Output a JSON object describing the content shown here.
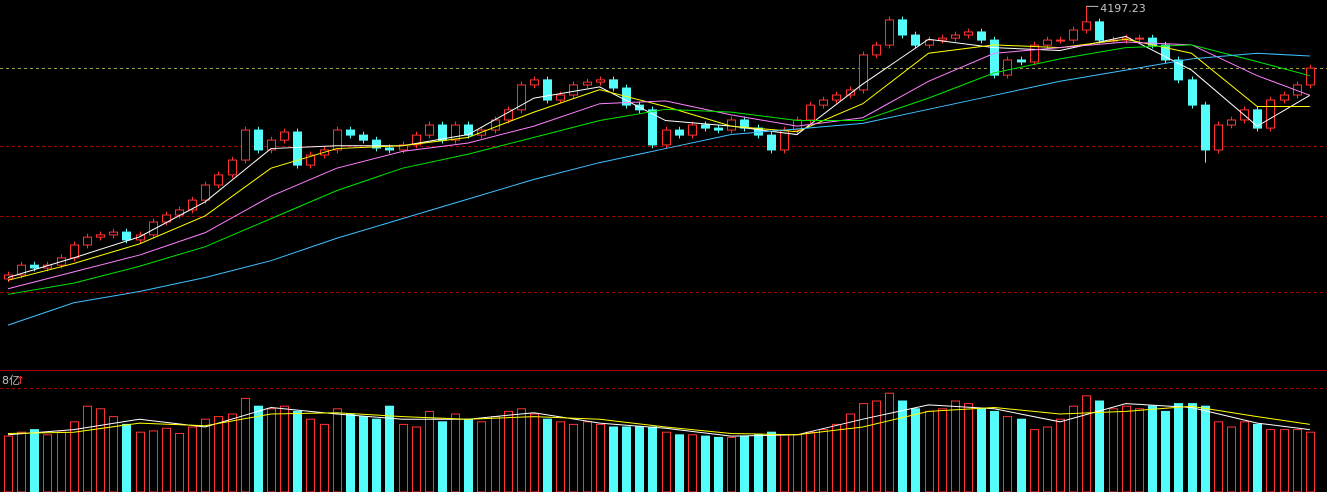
{
  "chart_data": {
    "type": "candlestick",
    "annotation": "4197.23",
    "volume_label": "8亿",
    "volume_arrow": "↑",
    "open": [
      3225,
      3239,
      3274,
      3264,
      3274,
      3300,
      3346,
      3374,
      3382,
      3392,
      3364,
      3382,
      3428,
      3453,
      3471,
      3506,
      3560,
      3596,
      3649,
      3756,
      3685,
      3720,
      3749,
      3631,
      3667,
      3685,
      3756,
      3738,
      3720,
      3692,
      3685,
      3703,
      3738,
      3774,
      3720,
      3774,
      3738,
      3756,
      3792,
      3828,
      3917,
      3935,
      3863,
      3881,
      3917,
      3927,
      3935,
      3906,
      3845,
      3828,
      3703,
      3756,
      3738,
      3774,
      3763,
      3756,
      3792,
      3763,
      3738,
      3685,
      3756,
      3792,
      3845,
      3863,
      3881,
      3899,
      4024,
      4059,
      4149,
      4095,
      4059,
      4077,
      4084,
      4095,
      4106,
      4077,
      3952,
      4006,
      3999,
      4059,
      4077,
      4077,
      4113,
      4142,
      4077,
      4077,
      4084,
      4084,
      4059,
      4006,
      3935,
      3845,
      3685,
      3774,
      3792,
      3828,
      3763,
      3863,
      3881,
      3917
    ],
    "high": [
      3251,
      3286,
      3286,
      3286,
      3312,
      3358,
      3386,
      3394,
      3404,
      3404,
      3394,
      3440,
      3465,
      3483,
      3518,
      3572,
      3608,
      3661,
      3768,
      3768,
      3732,
      3761,
      3761,
      3679,
      3697,
      3768,
      3768,
      3750,
      3732,
      3704,
      3715,
      3750,
      3786,
      3786,
      3786,
      3786,
      3768,
      3804,
      3840,
      3929,
      3947,
      3947,
      3893,
      3929,
      3939,
      3947,
      3947,
      3918,
      3857,
      3840,
      3768,
      3768,
      3786,
      3786,
      3775,
      3804,
      3804,
      3775,
      3750,
      3768,
      3804,
      3857,
      3875,
      3893,
      3911,
      4036,
      4071,
      4161,
      4161,
      4107,
      4089,
      4096,
      4107,
      4118,
      4118,
      4089,
      4018,
      4018,
      4071,
      4089,
      4089,
      4125,
      4197.23,
      4154,
      4089,
      4096,
      4096,
      4096,
      4071,
      4018,
      3947,
      3857,
      3786,
      3804,
      3840,
      3840,
      3875,
      3893,
      3929,
      3989
    ],
    "low": [
      3213,
      3227,
      3252,
      3252,
      3262,
      3288,
      3334,
      3362,
      3370,
      3352,
      3352,
      3370,
      3416,
      3441,
      3459,
      3494,
      3548,
      3584,
      3637,
      3673,
      3673,
      3708,
      3619,
      3619,
      3655,
      3673,
      3726,
      3708,
      3680,
      3673,
      3673,
      3691,
      3726,
      3708,
      3708,
      3726,
      3726,
      3744,
      3780,
      3816,
      3905,
      3851,
      3851,
      3869,
      3905,
      3915,
      3894,
      3833,
      3816,
      3691,
      3691,
      3726,
      3726,
      3751,
      3744,
      3744,
      3751,
      3726,
      3673,
      3673,
      3744,
      3780,
      3833,
      3851,
      3869,
      3887,
      4012,
      4047,
      4083,
      4047,
      4047,
      4065,
      4072,
      4083,
      4065,
      3940,
      3940,
      3987,
      3987,
      4047,
      4065,
      4065,
      4101,
      4065,
      4065,
      4065,
      4072,
      4047,
      3994,
      3923,
      3833,
      3640,
      3673,
      3762,
      3780,
      3751,
      3751,
      3851,
      3869,
      3905
    ],
    "close": [
      3239,
      3274,
      3264,
      3274,
      3300,
      3346,
      3374,
      3382,
      3392,
      3364,
      3382,
      3428,
      3453,
      3471,
      3506,
      3560,
      3596,
      3649,
      3756,
      3685,
      3720,
      3749,
      3631,
      3667,
      3685,
      3756,
      3738,
      3720,
      3692,
      3685,
      3703,
      3738,
      3774,
      3720,
      3774,
      3738,
      3756,
      3792,
      3828,
      3917,
      3935,
      3863,
      3881,
      3917,
      3927,
      3935,
      3906,
      3845,
      3828,
      3703,
      3756,
      3738,
      3774,
      3763,
      3756,
      3792,
      3763,
      3738,
      3685,
      3756,
      3792,
      3845,
      3863,
      3881,
      3899,
      4024,
      4059,
      4149,
      4095,
      4059,
      4077,
      4084,
      4095,
      4106,
      4077,
      3952,
      4006,
      3999,
      4059,
      4077,
      4077,
      4113,
      4142,
      4077,
      4077,
      4084,
      4084,
      4059,
      4006,
      3935,
      3845,
      3685,
      3774,
      3792,
      3828,
      3763,
      3863,
      3881,
      3917,
      3977
    ],
    "volume": [
      4.3,
      4.6,
      4.8,
      4.4,
      4.6,
      5.4,
      6.6,
      6.4,
      5.8,
      5.2,
      4.6,
      4.7,
      4.9,
      4.5,
      5.0,
      5.6,
      5.8,
      6.0,
      7.2,
      6.6,
      6.4,
      6.6,
      6.2,
      5.6,
      5.2,
      6.4,
      6.0,
      5.8,
      5.6,
      6.6,
      5.2,
      5.0,
      6.2,
      5.4,
      6.0,
      5.6,
      5.4,
      5.8,
      6.2,
      6.4,
      6.0,
      5.6,
      5.4,
      5.2,
      5.4,
      5.2,
      5.0,
      5.0,
      5.0,
      5.0,
      4.6,
      4.4,
      4.4,
      4.3,
      4.2,
      4.2,
      4.3,
      4.4,
      4.6,
      4.4,
      4.4,
      4.6,
      4.8,
      5.2,
      6.0,
      6.8,
      7.0,
      7.6,
      7.0,
      6.4,
      6.2,
      6.4,
      7.0,
      6.8,
      6.4,
      6.2,
      5.8,
      5.6,
      4.8,
      5.0,
      5.6,
      6.6,
      7.4,
      7.0,
      6.4,
      6.6,
      6.4,
      6.6,
      6.2,
      6.8,
      6.8,
      6.6,
      5.4,
      5.0,
      5.4,
      5.2,
      4.8,
      4.8,
      4.8,
      4.6
    ],
    "up_color": "#ff3232",
    "down_color": "#54fcfc",
    "ylim": [
      2900,
      4220
    ],
    "yticks": [
      3180,
      3450,
      3700
    ],
    "vlim": [
      0,
      9
    ],
    "vticks": [
      8
    ],
    "ma_x": [
      0,
      5,
      10,
      15,
      20,
      25,
      30,
      35,
      40,
      45,
      50,
      55,
      60,
      65,
      70,
      75,
      80,
      85,
      90,
      95,
      99
    ],
    "ma": [
      {
        "color": "#ffffff",
        "values": [
          3230,
          3300,
          3375,
          3500,
          3690,
          3700,
          3700,
          3740,
          3870,
          3910,
          3790,
          3770,
          3740,
          3920,
          4080,
          4050,
          4040,
          4090,
          3970,
          3770,
          3880
        ]
      },
      {
        "color": "#ffff00",
        "values": [
          3220,
          3280,
          3350,
          3450,
          3620,
          3690,
          3700,
          3730,
          3820,
          3900,
          3840,
          3770,
          3750,
          3850,
          4030,
          4060,
          4050,
          4080,
          4030,
          3840,
          3840
        ]
      },
      {
        "color": "#ff80ff",
        "values": [
          3190,
          3250,
          3310,
          3390,
          3520,
          3620,
          3680,
          3710,
          3770,
          3850,
          3860,
          3810,
          3770,
          3800,
          3930,
          4030,
          4050,
          4070,
          4060,
          3950,
          3880
        ]
      },
      {
        "color": "#00e600",
        "values": [
          3170,
          3210,
          3270,
          3340,
          3440,
          3540,
          3620,
          3670,
          3730,
          3790,
          3830,
          3820,
          3790,
          3790,
          3870,
          3960,
          4010,
          4050,
          4060,
          4000,
          3950
        ]
      },
      {
        "color": "#40c0ff",
        "values": [
          3060,
          3140,
          3180,
          3230,
          3290,
          3370,
          3440,
          3510,
          3580,
          3640,
          3690,
          3740,
          3760,
          3780,
          3830,
          3880,
          3930,
          3970,
          4010,
          4030,
          4020
        ]
      }
    ],
    "vma": [
      {
        "color": "#ffffff",
        "values": [
          4.4,
          4.8,
          5.6,
          5.0,
          6.5,
          6.0,
          5.6,
          5.6,
          6.1,
          5.3,
          4.9,
          4.3,
          4.4,
          5.6,
          6.7,
          6.4,
          5.4,
          6.8,
          6.5,
          5.3,
          4.8
        ]
      },
      {
        "color": "#ffff00",
        "values": [
          4.5,
          4.6,
          5.3,
          5.1,
          6.0,
          6.1,
          5.8,
          5.6,
          5.8,
          5.6,
          5.0,
          4.5,
          4.4,
          5.0,
          6.2,
          6.5,
          6.0,
          6.2,
          6.6,
          5.8,
          5.2
        ]
      }
    ]
  }
}
